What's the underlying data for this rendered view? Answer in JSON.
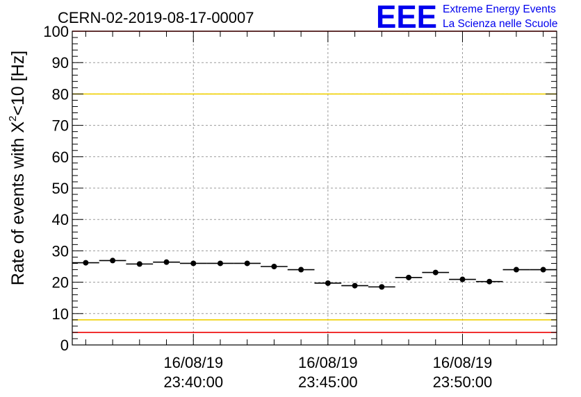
{
  "chart_data": {
    "type": "scatter",
    "title": "CERN-02-2019-08-17-00007",
    "ylabel_main": "Rate of events with X",
    "ylabel_sup": "2",
    "ylabel_tail": "<10 [Hz]",
    "xlabel": "",
    "ylim": [
      0,
      100
    ],
    "y_ticks": [
      "0",
      "10",
      "20",
      "30",
      "40",
      "50",
      "60",
      "70",
      "80",
      "90",
      "100"
    ],
    "x_ticks": [
      {
        "date": "16/08/19",
        "time": "23:40:00",
        "value": "23:40:00"
      },
      {
        "date": "16/08/19",
        "time": "23:45:00",
        "value": "23:45:00"
      },
      {
        "date": "16/08/19",
        "time": "23:50:00",
        "value": "23:50:00"
      }
    ],
    "xlim": [
      "23:35:30",
      "23:53:30"
    ],
    "grid": true,
    "bin_width_seconds": 60,
    "points": [
      {
        "x": "23:36:00",
        "y": 26.2
      },
      {
        "x": "23:37:00",
        "y": 26.9
      },
      {
        "x": "23:38:00",
        "y": 25.8
      },
      {
        "x": "23:39:00",
        "y": 26.4
      },
      {
        "x": "23:40:00",
        "y": 26.0
      },
      {
        "x": "23:41:00",
        "y": 26.0
      },
      {
        "x": "23:42:00",
        "y": 26.0
      },
      {
        "x": "23:43:00",
        "y": 25.0
      },
      {
        "x": "23:44:00",
        "y": 24.0
      },
      {
        "x": "23:45:00",
        "y": 19.7
      },
      {
        "x": "23:46:00",
        "y": 18.9
      },
      {
        "x": "23:47:00",
        "y": 18.5
      },
      {
        "x": "23:48:00",
        "y": 21.5
      },
      {
        "x": "23:49:00",
        "y": 23.1
      },
      {
        "x": "23:50:00",
        "y": 20.9
      },
      {
        "x": "23:51:00",
        "y": 20.2
      },
      {
        "x": "23:52:00",
        "y": 24.0
      },
      {
        "x": "23:53:00",
        "y": 24.0
      }
    ],
    "reference_lines": [
      {
        "y": 100,
        "color": "#ee0000"
      },
      {
        "y": 80,
        "color": "#f0d000"
      },
      {
        "y": 8,
        "color": "#f0d000"
      },
      {
        "y": 4,
        "color": "#ee0000"
      }
    ],
    "marker_color": "#000000",
    "grid_color": "#9a9a9a"
  },
  "logo": {
    "mark": "EEE",
    "line1": "Extreme Energy Events",
    "line2": "La Scienza nelle Scuole",
    "color": "#0000ee"
  }
}
